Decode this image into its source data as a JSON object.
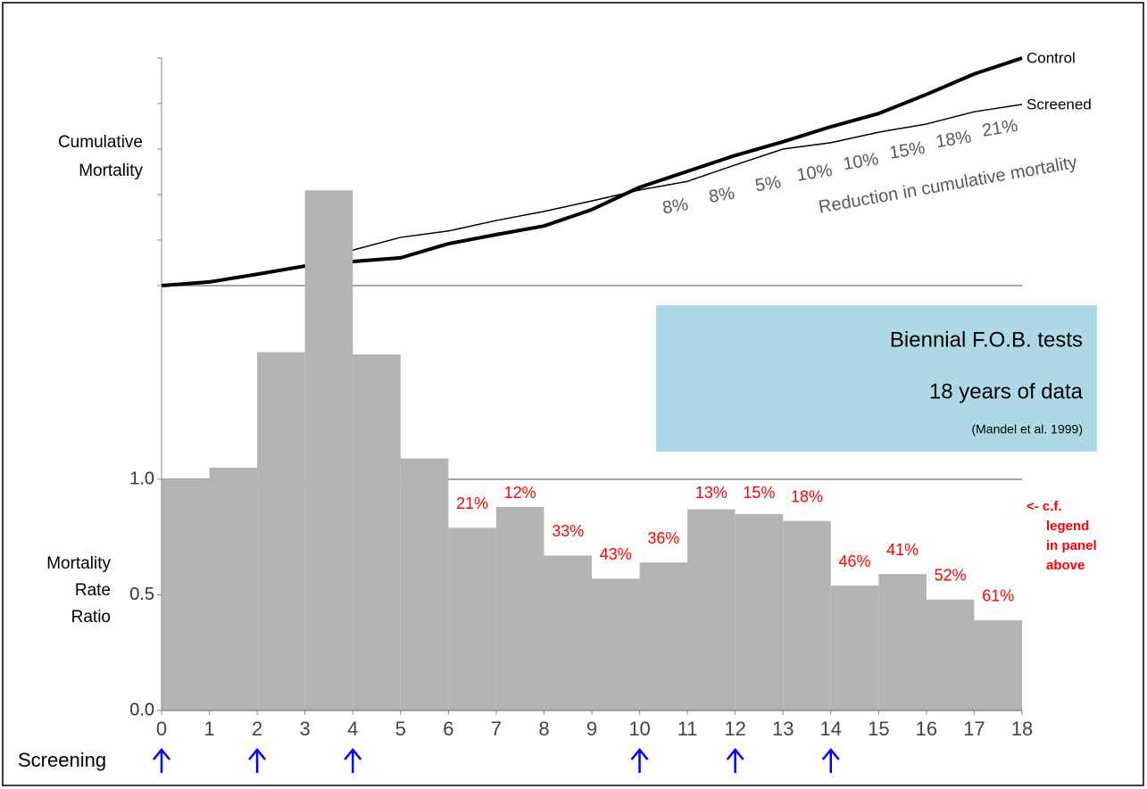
{
  "chart_data": [
    {
      "type": "line",
      "ylabel": [
        "Cumulative",
        "Mortality"
      ],
      "x": [
        0,
        1,
        2,
        3,
        4,
        5,
        6,
        7,
        8,
        9,
        10,
        11,
        12,
        13,
        14,
        15,
        16,
        17,
        18
      ],
      "xlim": [
        0,
        18
      ],
      "ylim": [
        0,
        5
      ],
      "yticks": [
        0,
        1,
        2,
        3,
        4,
        5
      ],
      "series": [
        {
          "name": "Control",
          "color": "#000000",
          "values": [
            0,
            0.08,
            0.25,
            0.43,
            0.53,
            0.61,
            0.92,
            1.12,
            1.31,
            1.67,
            2.16,
            2.51,
            2.86,
            3.16,
            3.49,
            3.78,
            4.2,
            4.65,
            5.0
          ]
        },
        {
          "name": "Screened",
          "color": "#000000",
          "values": [
            0,
            0.08,
            0.25,
            0.45,
            0.78,
            1.06,
            1.2,
            1.43,
            1.63,
            1.86,
            2.1,
            2.29,
            2.65,
            3.0,
            3.14,
            3.37,
            3.55,
            3.82,
            3.98
          ]
        }
      ],
      "reduction": {
        "values": [
          8,
          8,
          5,
          10,
          10,
          15,
          18,
          21
        ],
        "value_labels": [
          "8%",
          "8%",
          "5%",
          "10%",
          "10%",
          "15%",
          "18%",
          "21%"
        ],
        "color": "#595959"
      },
      "annotation": "Reduction in cumulative mortality"
    },
    {
      "type": "histogram",
      "ylabel": [
        "Mortality",
        "Rate",
        "Ratio"
      ],
      "bins": [
        0,
        1,
        2,
        3,
        4,
        5,
        6,
        7,
        8,
        9,
        10,
        11,
        12,
        13,
        14,
        15,
        16,
        17,
        18
      ],
      "values": [
        1.0,
        1.05,
        1.55,
        2.25,
        1.54,
        1.09,
        0.79,
        0.88,
        0.67,
        0.57,
        0.64,
        0.87,
        0.85,
        0.82,
        0.54,
        0.59,
        0.48,
        0.39
      ],
      "color": "#b3b3b3",
      "xlim": [
        0,
        18
      ],
      "xticks": [
        0,
        1,
        2,
        3,
        4,
        5,
        6,
        7,
        8,
        9,
        10,
        11,
        12,
        13,
        14,
        15,
        16,
        17,
        18
      ],
      "ylim": [
        0,
        2.3
      ],
      "yticks": [
        {
          "value": 0,
          "label": "0.0"
        },
        0.5,
        {
          "value": 1,
          "label": "1.0"
        }
      ],
      "reference_line": 1,
      "reduction": {
        "values": [
          21,
          12,
          33,
          43,
          36,
          13,
          15,
          18,
          46,
          41,
          52,
          61
        ],
        "value_labels": [
          "21%",
          "12%",
          "33%",
          "43%",
          "36%",
          "13%",
          "15%",
          "18%",
          "46%",
          "41%",
          "52%",
          "61%"
        ],
        "color": "#ff0000"
      },
      "note": [
        "<- c.f.",
        "legend",
        "in panel",
        "above"
      ],
      "screening_label": "Screening",
      "screening_years": [
        0,
        2,
        4,
        10,
        12,
        14
      ],
      "screening_color": "#0000ff"
    }
  ],
  "info_box": {
    "title": "Biennial F.O.B. tests",
    "subtitle": "18 years of data",
    "citation": "(Mandel et al. 1999)"
  }
}
